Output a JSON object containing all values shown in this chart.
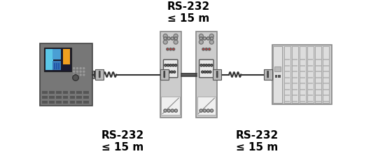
{
  "bg_color": "#ffffff",
  "text_color": "#000000",
  "label_top": "RS-232\n≤ 15 m",
  "label_bottom_left": "RS-232\n≤ 15 m",
  "label_bottom_right": "RS-232\n≤ 15 m",
  "label_fontsize": 11,
  "figsize": [
    5.3,
    2.2
  ],
  "dpi": 100,
  "device_left_color": "#6d6d6d",
  "device_left_screen_color": "#4db8d4",
  "device_right_color": "#d0d0d0",
  "isolator_color": "#b0b0b0",
  "connector_color": "#cccccc"
}
